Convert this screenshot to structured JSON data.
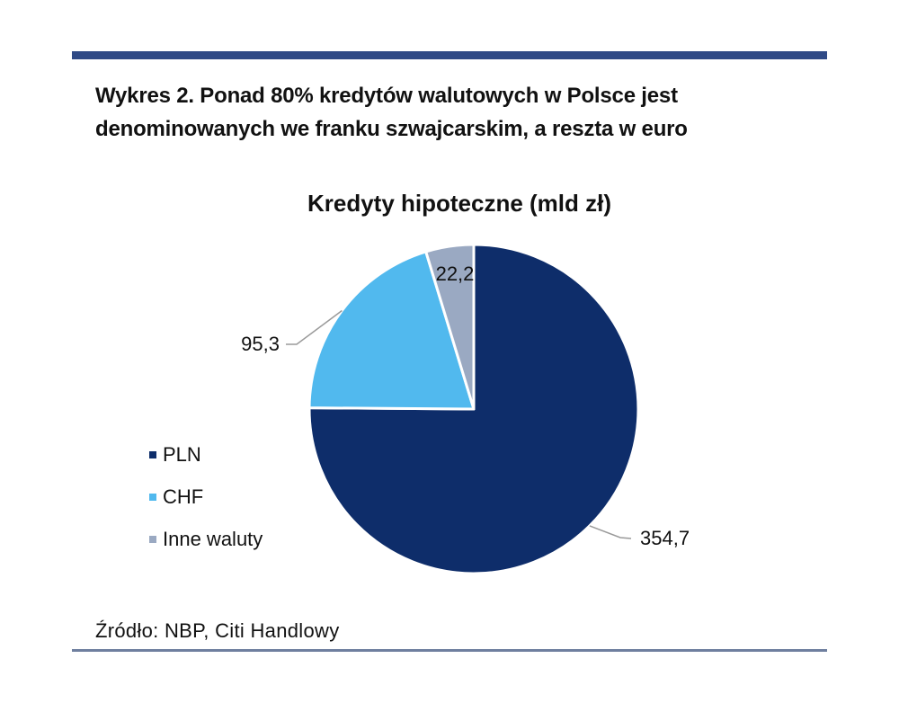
{
  "figure": {
    "heading_line1": "Wykres 2. Ponad 80% kredytów walutowych w Polsce jest",
    "heading_line2": "denominowanych we franku szwajcarskim, a reszta w euro",
    "source": "Źródło: NBP, Citi Handlowy"
  },
  "chart_data": {
    "type": "pie",
    "title": "Kredyty hipoteczne (mld zł)",
    "start_angle": "12 o'clock",
    "direction": "clockwise",
    "legend_position": "left",
    "slices": [
      {
        "name": "PLN",
        "value": 354.7,
        "label": "354,7",
        "color": "#0e2d6a"
      },
      {
        "name": "CHF",
        "value": 95.3,
        "label": "95,3",
        "color": "#51b9ee"
      },
      {
        "name": "Inne waluty",
        "value": 22.2,
        "label": "22,2",
        "color": "#9aa9c2"
      }
    ]
  }
}
